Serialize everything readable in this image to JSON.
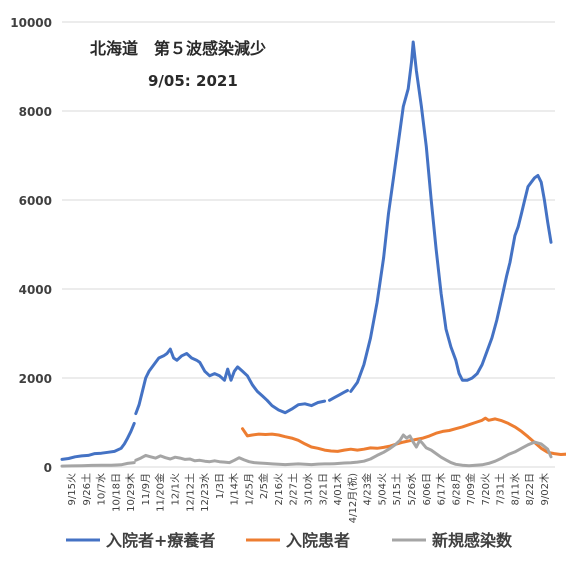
{
  "chart_data": {
    "type": "line",
    "title": "北海道　第５波感染減少",
    "subtitle": "9/05: 2021",
    "xlabel": "",
    "ylabel": "",
    "ylim": [
      0,
      10000
    ],
    "y_ticks": [
      0,
      2000,
      4000,
      6000,
      8000,
      10000
    ],
    "grid": "horizontal",
    "legend_position": "bottom",
    "x_tick_labels": [
      "9/15火",
      "9/26土",
      "10/7水",
      "10/18日",
      "10/29木",
      "11/9月",
      "11/20金",
      "12/1火",
      "12/12土",
      "12/23水",
      "1/3日",
      "1/14木",
      "1/25月",
      "2/5金",
      "2/16火",
      "2/27土",
      "3/10水",
      "3/21日",
      "4/01木",
      "4/12月(祝)",
      "4/23金",
      "5/04火",
      "5/15土",
      "5/26水",
      "6/06日",
      "6/17木",
      "6/28月",
      "7/09金",
      "7/20火",
      "7/31土",
      "8/11水",
      "8/22日",
      "9/02木"
    ],
    "colors": {
      "series1": "#4472C4",
      "series2": "#ED7D31",
      "series3": "#A5A5A5"
    },
    "series": [
      {
        "name": "入院者+療養者",
        "color": "#4472C4",
        "segments": [
          [
            [
              0,
              170
            ],
            [
              4,
              190
            ],
            [
              8,
              230
            ],
            [
              12,
              250
            ],
            [
              16,
              260
            ],
            [
              20,
              300
            ],
            [
              24,
              310
            ],
            [
              28,
              330
            ],
            [
              32,
              350
            ],
            [
              36,
              420
            ],
            [
              38,
              520
            ],
            [
              40,
              650
            ],
            [
              42,
              800
            ],
            [
              44,
              980
            ]
          ],
          [
            [
              45,
              1200
            ],
            [
              47,
              1400
            ],
            [
              49,
              1700
            ],
            [
              51,
              2000
            ],
            [
              53,
              2150
            ],
            [
              56,
              2300
            ],
            [
              59,
              2450
            ],
            [
              62,
              2500
            ],
            [
              64,
              2550
            ],
            [
              66,
              2650
            ],
            [
              68,
              2450
            ],
            [
              70,
              2400
            ],
            [
              73,
              2500
            ],
            [
              76,
              2550
            ],
            [
              79,
              2450
            ],
            [
              82,
              2400
            ],
            [
              84,
              2350
            ],
            [
              87,
              2150
            ],
            [
              90,
              2050
            ],
            [
              93,
              2100
            ],
            [
              96,
              2050
            ],
            [
              99,
              1950
            ],
            [
              101,
              2200
            ],
            [
              103,
              1950
            ],
            [
              105,
              2150
            ],
            [
              107,
              2250
            ],
            [
              110,
              2150
            ],
            [
              113,
              2050
            ],
            [
              116,
              1850
            ],
            [
              119,
              1700
            ],
            [
              122,
              1600
            ],
            [
              125,
              1500
            ],
            [
              128,
              1380
            ],
            [
              132,
              1280
            ],
            [
              136,
              1220
            ],
            [
              140,
              1300
            ],
            [
              144,
              1400
            ],
            [
              148,
              1420
            ],
            [
              152,
              1380
            ],
            [
              156,
              1450
            ],
            [
              160,
              1480
            ]
          ],
          [
            [
              163,
              1500
            ],
            [
              166,
              1560
            ],
            [
              169,
              1620
            ],
            [
              172,
              1680
            ],
            [
              174,
              1720
            ]
          ],
          [
            [
              176,
              1700
            ],
            [
              180,
              1900
            ],
            [
              184,
              2300
            ],
            [
              188,
              2900
            ],
            [
              192,
              3700
            ],
            [
              196,
              4700
            ],
            [
              199,
              5700
            ],
            [
              202,
              6500
            ],
            [
              205,
              7300
            ],
            [
              208,
              8100
            ],
            [
              211,
              8500
            ],
            [
              213,
              9100
            ],
            [
              214,
              9550
            ],
            [
              216,
              8900
            ],
            [
              219,
              8100
            ],
            [
              222,
              7200
            ],
            [
              225,
              6000
            ],
            [
              228,
              4900
            ],
            [
              231,
              3900
            ],
            [
              234,
              3100
            ],
            [
              237,
              2700
            ],
            [
              240,
              2400
            ],
            [
              242,
              2100
            ],
            [
              244,
              1950
            ],
            [
              247,
              1950
            ],
            [
              250,
              2000
            ],
            [
              253,
              2100
            ],
            [
              256,
              2300
            ],
            [
              259,
              2600
            ],
            [
              262,
              2900
            ],
            [
              265,
              3300
            ],
            [
              268,
              3800
            ],
            [
              271,
              4300
            ],
            [
              273,
              4600
            ],
            [
              276,
              5200
            ],
            [
              278,
              5400
            ],
            [
              280,
              5700
            ],
            [
              282,
              6000
            ],
            [
              284,
              6300
            ],
            [
              286,
              6400
            ],
            [
              288,
              6500
            ],
            [
              290,
              6550
            ],
            [
              292,
              6400
            ],
            [
              294,
              6000
            ],
            [
              296,
              5500
            ],
            [
              298,
              5050
            ]
          ]
        ]
      },
      {
        "name": "入院患者",
        "color": "#ED7D31",
        "segments": [
          [
            [
              110,
              860
            ],
            [
              113,
              700
            ],
            [
              116,
              720
            ],
            [
              120,
              740
            ],
            [
              124,
              730
            ],
            [
              128,
              740
            ],
            [
              132,
              720
            ],
            [
              136,
              680
            ],
            [
              140,
              650
            ],
            [
              144,
              600
            ],
            [
              148,
              520
            ],
            [
              152,
              450
            ],
            [
              156,
              420
            ],
            [
              160,
              380
            ],
            [
              164,
              360
            ],
            [
              168,
              350
            ],
            [
              172,
              380
            ],
            [
              176,
              400
            ],
            [
              180,
              380
            ],
            [
              184,
              400
            ],
            [
              188,
              430
            ],
            [
              192,
              420
            ],
            [
              196,
              440
            ],
            [
              200,
              470
            ],
            [
              204,
              520
            ],
            [
              208,
              560
            ],
            [
              212,
              590
            ],
            [
              216,
              620
            ],
            [
              220,
              650
            ],
            [
              224,
              700
            ],
            [
              228,
              760
            ],
            [
              232,
              800
            ],
            [
              236,
              820
            ],
            [
              240,
              860
            ],
            [
              244,
              900
            ],
            [
              248,
              950
            ],
            [
              252,
              1000
            ],
            [
              256,
              1050
            ],
            [
              258,
              1100
            ],
            [
              260,
              1050
            ],
            [
              264,
              1080
            ],
            [
              268,
              1040
            ],
            [
              272,
              980
            ],
            [
              276,
              900
            ],
            [
              280,
              800
            ],
            [
              284,
              680
            ],
            [
              288,
              550
            ],
            [
              292,
              420
            ],
            [
              296,
              330
            ],
            [
              300,
              300
            ],
            [
              304,
              280
            ],
            [
              308,
              290
            ],
            [
              312,
              320
            ],
            [
              316,
              360
            ],
            [
              320,
              420
            ],
            [
              324,
              480
            ],
            [
              328,
              550
            ],
            [
              332,
              620
            ],
            [
              336,
              700
            ],
            [
              340,
              780
            ],
            [
              344,
              880
            ],
            [
              348,
              940
            ],
            [
              350,
              990
            ],
            [
              352,
              900
            ],
            [
              354,
              800
            ]
          ]
        ]
      },
      {
        "name": "新規感染数",
        "color": "#A5A5A5",
        "segments": [
          [
            [
              0,
              20
            ],
            [
              6,
              25
            ],
            [
              12,
              30
            ],
            [
              18,
              35
            ],
            [
              24,
              40
            ],
            [
              30,
              40
            ],
            [
              36,
              50
            ],
            [
              40,
              80
            ],
            [
              44,
              100
            ]
          ],
          [
            [
              45,
              150
            ],
            [
              48,
              200
            ],
            [
              51,
              260
            ],
            [
              54,
              230
            ],
            [
              57,
              200
            ],
            [
              60,
              250
            ],
            [
              63,
              210
            ],
            [
              66,
              180
            ],
            [
              69,
              220
            ],
            [
              72,
              200
            ],
            [
              75,
              170
            ],
            [
              78,
              180
            ],
            [
              81,
              140
            ],
            [
              84,
              150
            ],
            [
              87,
              130
            ],
            [
              90,
              120
            ],
            [
              93,
              140
            ],
            [
              96,
              120
            ],
            [
              99,
              110
            ],
            [
              102,
              100
            ],
            [
              105,
              150
            ],
            [
              108,
              210
            ],
            [
              111,
              160
            ],
            [
              114,
              120
            ],
            [
              117,
              100
            ],
            [
              120,
              90
            ],
            [
              124,
              80
            ],
            [
              128,
              70
            ],
            [
              132,
              60
            ],
            [
              136,
              55
            ],
            [
              140,
              60
            ],
            [
              144,
              70
            ],
            [
              148,
              60
            ],
            [
              152,
              55
            ],
            [
              156,
              65
            ],
            [
              160,
              70
            ],
            [
              163,
              70
            ],
            [
              166,
              75
            ],
            [
              169,
              80
            ],
            [
              172,
              90
            ],
            [
              176,
              95
            ],
            [
              180,
              110
            ],
            [
              184,
              130
            ],
            [
              188,
              180
            ],
            [
              192,
              260
            ],
            [
              196,
              330
            ],
            [
              200,
              420
            ],
            [
              203,
              500
            ],
            [
              206,
              600
            ],
            [
              208,
              720
            ],
            [
              210,
              650
            ],
            [
              212,
              700
            ],
            [
              214,
              560
            ],
            [
              216,
              450
            ],
            [
              218,
              600
            ],
            [
              220,
              520
            ],
            [
              222,
              430
            ],
            [
              225,
              380
            ],
            [
              228,
              300
            ],
            [
              231,
              220
            ],
            [
              234,
              160
            ],
            [
              237,
              100
            ],
            [
              240,
              60
            ],
            [
              244,
              40
            ],
            [
              248,
              30
            ],
            [
              252,
              40
            ],
            [
              256,
              50
            ],
            [
              260,
              80
            ],
            [
              264,
              130
            ],
            [
              268,
              200
            ],
            [
              272,
              280
            ],
            [
              276,
              340
            ],
            [
              280,
              420
            ],
            [
              284,
              500
            ],
            [
              288,
              560
            ],
            [
              292,
              520
            ],
            [
              296,
              400
            ],
            [
              298,
              230
            ]
          ]
        ]
      }
    ]
  }
}
